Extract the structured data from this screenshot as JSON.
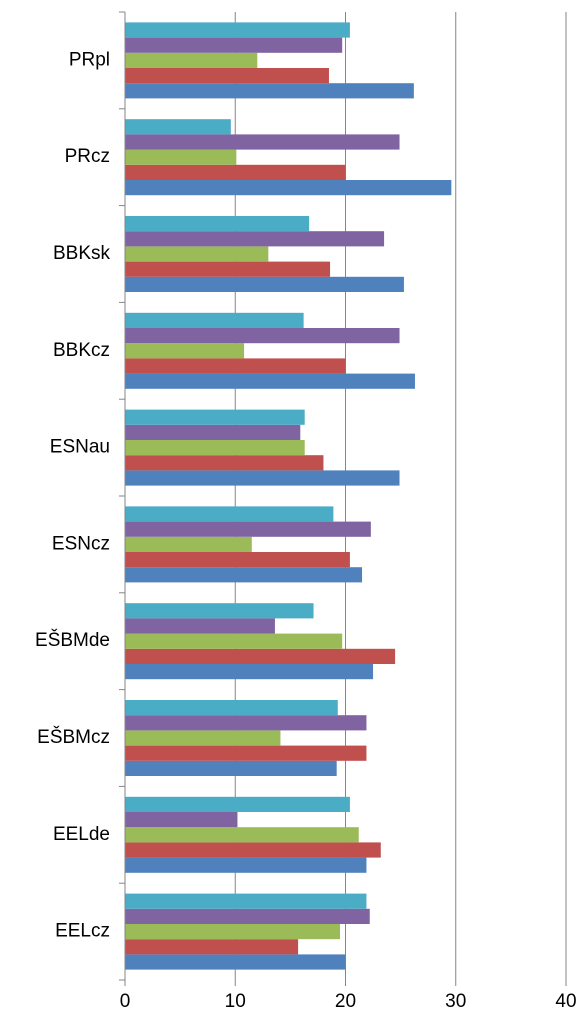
{
  "chart_data": {
    "type": "barh",
    "categories": [
      "PRpl",
      "PRcz",
      "BBKsk",
      "BBKcz",
      "ESNau",
      "ESNcz",
      "EŠBMde",
      "EŠBMcz",
      "EELde",
      "EELcz"
    ],
    "series": [
      {
        "color": "#4f81bd",
        "values": [
          26.2,
          29.6,
          25.3,
          26.3,
          24.9,
          21.5,
          22.5,
          19.2,
          21.9,
          20.0
        ]
      },
      {
        "color": "#c0504d",
        "values": [
          18.5,
          20.0,
          18.6,
          20.0,
          18.0,
          20.4,
          24.5,
          21.9,
          23.2,
          15.7
        ]
      },
      {
        "color": "#9bbb59",
        "values": [
          12.0,
          10.1,
          13.0,
          10.8,
          16.3,
          11.5,
          19.7,
          14.1,
          21.2,
          19.5
        ]
      },
      {
        "color": "#8064a2",
        "values": [
          19.7,
          24.9,
          23.5,
          24.9,
          15.9,
          22.3,
          13.6,
          21.9,
          10.2,
          22.2
        ]
      },
      {
        "color": "#4bacc6",
        "values": [
          20.4,
          9.6,
          16.7,
          16.2,
          16.3,
          18.9,
          17.1,
          19.3,
          20.4,
          21.9
        ]
      }
    ],
    "xlim": [
      0,
      40
    ],
    "xticks": [
      0,
      10,
      20,
      30,
      40
    ],
    "grid": true
  }
}
